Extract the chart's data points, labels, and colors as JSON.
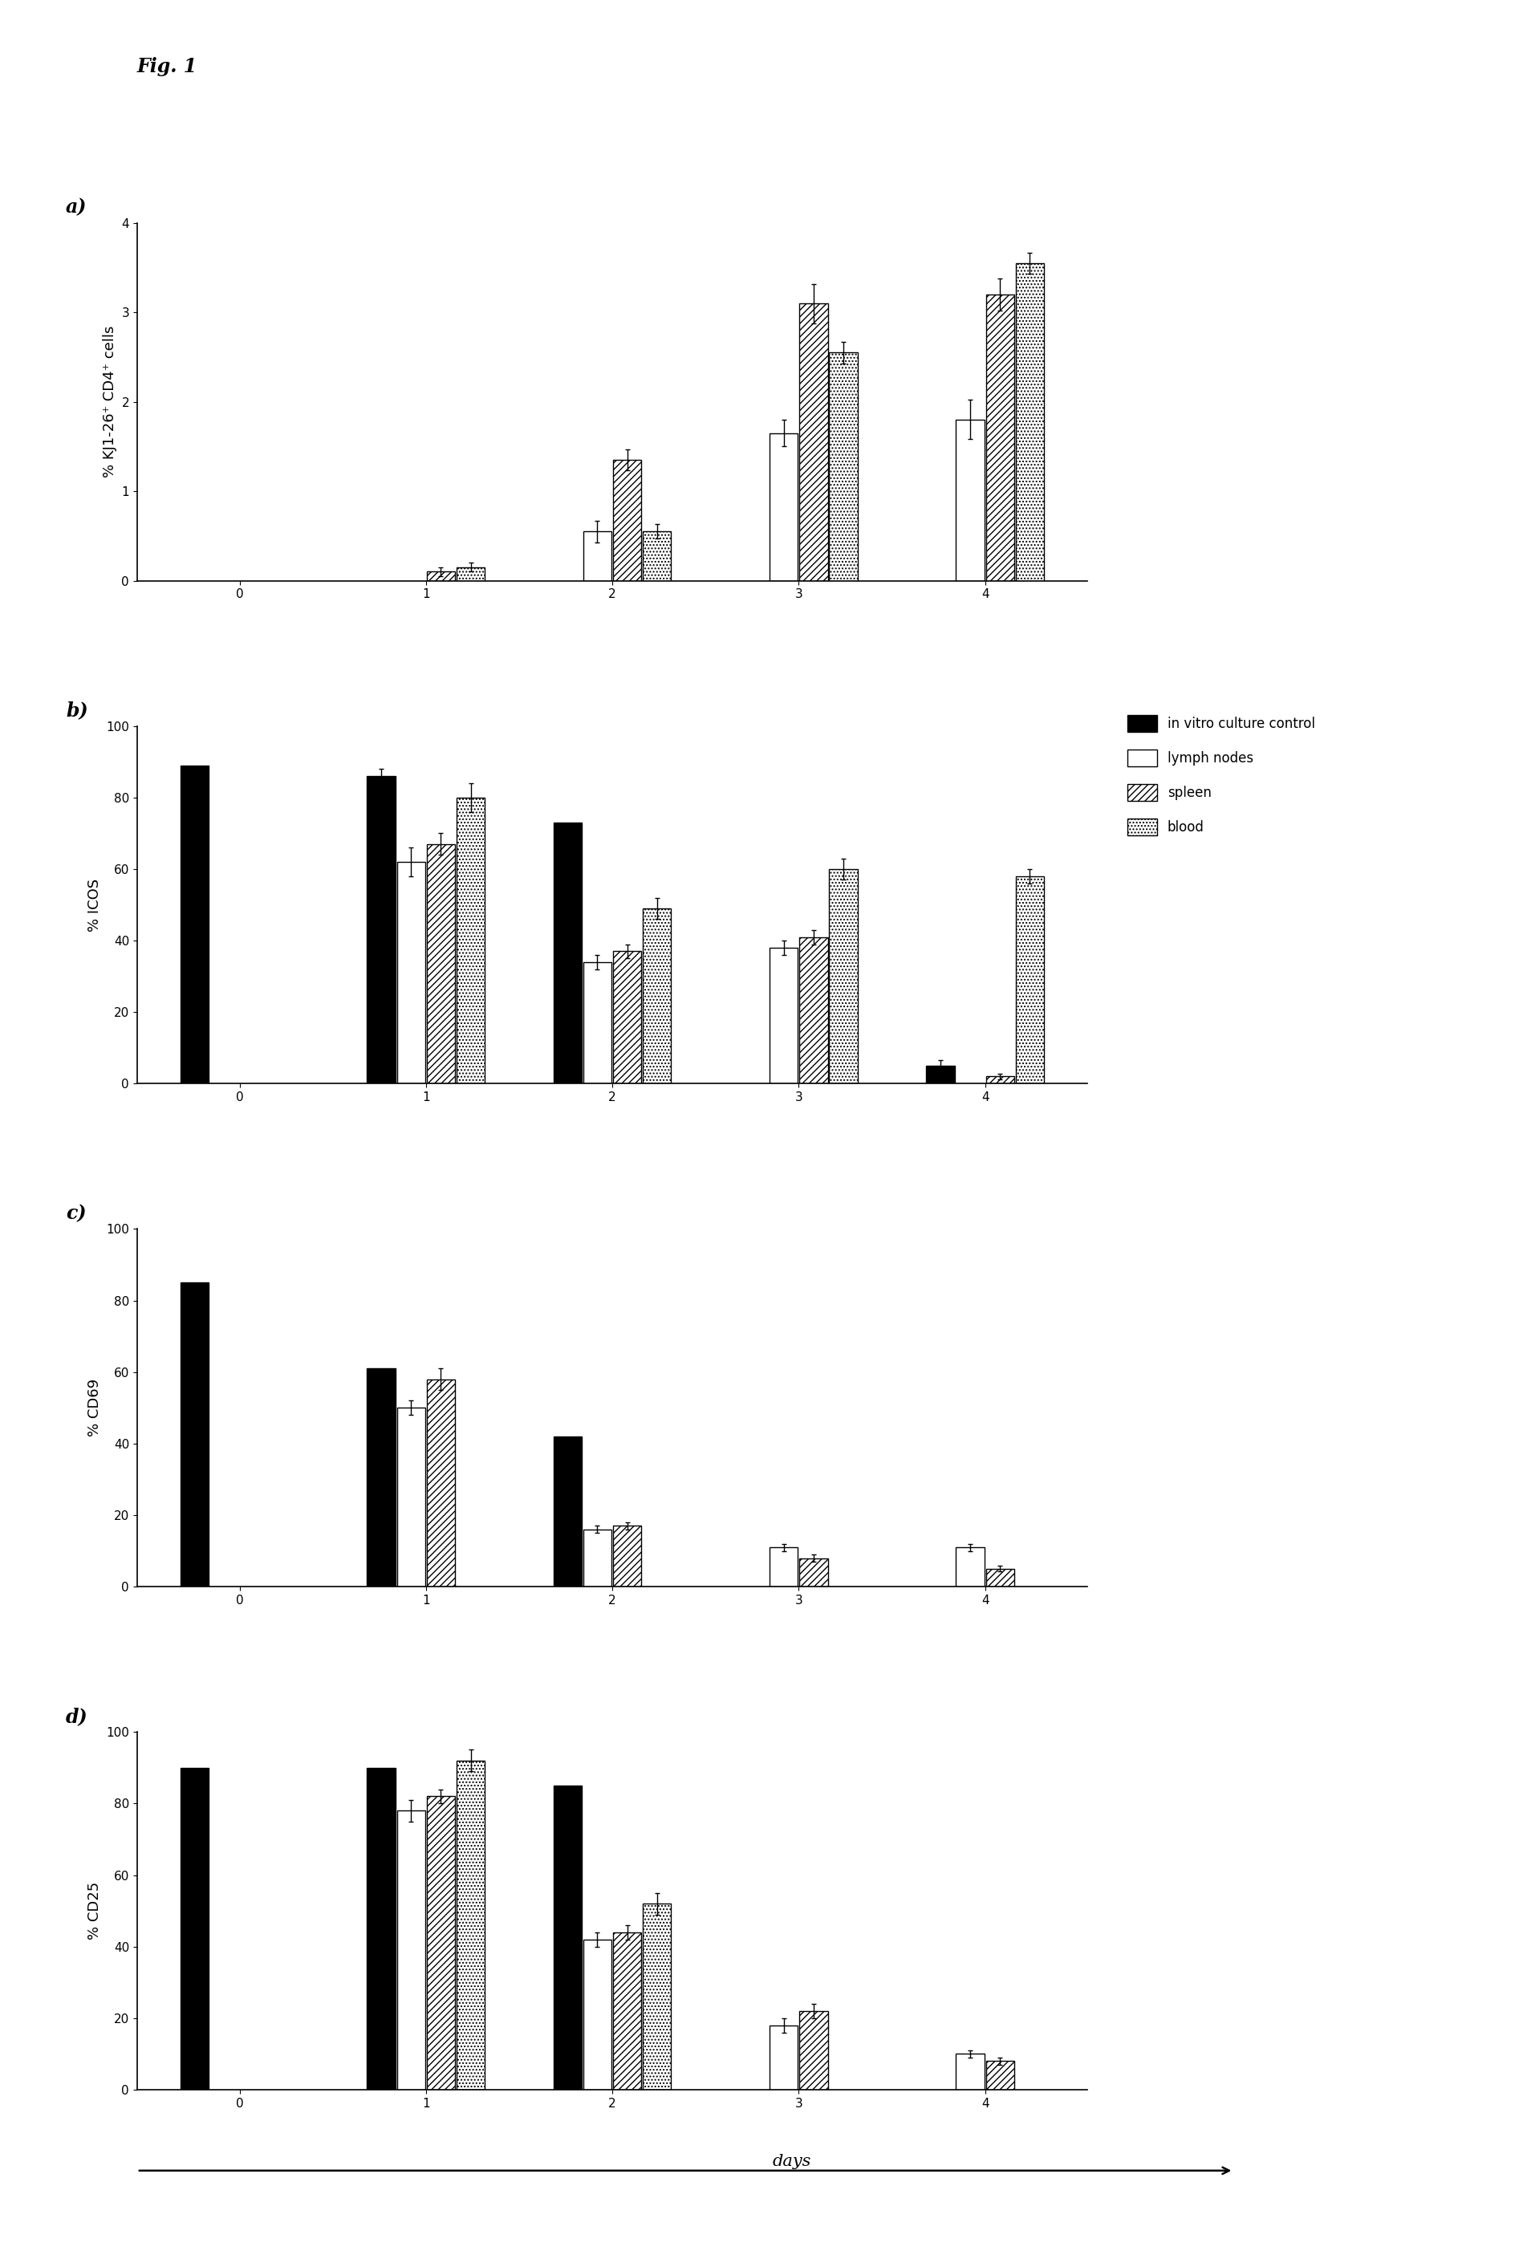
{
  "fig_label": "Fig. 1",
  "background_color": "#ffffff",
  "days": [
    0,
    1,
    2,
    3,
    4
  ],
  "panel_a": {
    "ylabel": "% KJ1-26⁺ CD4⁺ cells",
    "ylim": [
      0,
      4
    ],
    "yticks": [
      0,
      1,
      2,
      3,
      4
    ],
    "data": {
      "control": [
        null,
        null,
        null,
        null,
        null
      ],
      "lymph_nodes": [
        null,
        null,
        0.55,
        1.65,
        1.8
      ],
      "spleen": [
        null,
        0.1,
        1.35,
        3.1,
        3.2
      ],
      "blood": [
        null,
        0.15,
        0.55,
        2.55,
        3.55
      ]
    },
    "err": {
      "control": [
        null,
        null,
        null,
        null,
        null
      ],
      "lymph_nodes": [
        null,
        null,
        0.12,
        0.15,
        0.22
      ],
      "spleen": [
        null,
        0.05,
        0.12,
        0.22,
        0.18
      ],
      "blood": [
        null,
        0.05,
        0.08,
        0.12,
        0.12
      ]
    }
  },
  "panel_b": {
    "ylabel": "% ICOS",
    "ylim": [
      0,
      100
    ],
    "yticks": [
      0,
      20,
      40,
      60,
      80,
      100
    ],
    "data": {
      "control": [
        89,
        86,
        73,
        null,
        5
      ],
      "lymph_nodes": [
        null,
        62,
        34,
        38,
        null
      ],
      "spleen": [
        null,
        67,
        37,
        41,
        2
      ],
      "blood": [
        null,
        80,
        49,
        60,
        58
      ]
    },
    "err": {
      "control": [
        null,
        2,
        null,
        null,
        1.5
      ],
      "lymph_nodes": [
        null,
        4,
        2,
        2,
        null
      ],
      "spleen": [
        null,
        3,
        2,
        2,
        0.8
      ],
      "blood": [
        null,
        4,
        3,
        3,
        2
      ]
    }
  },
  "panel_c": {
    "ylabel": "% CD69",
    "ylim": [
      0,
      100
    ],
    "yticks": [
      0,
      20,
      40,
      60,
      80,
      100
    ],
    "data": {
      "control": [
        85,
        61,
        42,
        null,
        null
      ],
      "lymph_nodes": [
        null,
        50,
        16,
        11,
        11
      ],
      "spleen": [
        null,
        58,
        17,
        8,
        5
      ],
      "blood": [
        null,
        null,
        null,
        null,
        null
      ]
    },
    "err": {
      "control": [
        null,
        null,
        null,
        null,
        null
      ],
      "lymph_nodes": [
        null,
        2,
        1,
        1,
        1
      ],
      "spleen": [
        null,
        3,
        1,
        1,
        0.8
      ],
      "blood": [
        null,
        null,
        null,
        null,
        null
      ]
    }
  },
  "panel_d": {
    "ylabel": "% CD25",
    "ylim": [
      0,
      100
    ],
    "yticks": [
      0,
      20,
      40,
      60,
      80,
      100
    ],
    "data": {
      "control": [
        90,
        90,
        85,
        null,
        null
      ],
      "lymph_nodes": [
        null,
        78,
        42,
        18,
        10
      ],
      "spleen": [
        null,
        82,
        44,
        22,
        8
      ],
      "blood": [
        null,
        92,
        52,
        null,
        null
      ]
    },
    "err": {
      "control": [
        null,
        null,
        null,
        null,
        null
      ],
      "lymph_nodes": [
        null,
        3,
        2,
        2,
        1
      ],
      "spleen": [
        null,
        2,
        2,
        2,
        1
      ],
      "blood": [
        null,
        3,
        3,
        null,
        null
      ]
    }
  },
  "legend_labels": [
    "in vitro culture control",
    "lymph nodes",
    "spleen",
    "blood"
  ],
  "series_keys": [
    "control",
    "lymph_nodes",
    "spleen",
    "blood"
  ],
  "face_colors": [
    "black",
    "white",
    "white",
    "white"
  ],
  "edge_colors": [
    "black",
    "black",
    "black",
    "black"
  ],
  "hatches": [
    null,
    null,
    "////",
    "...."
  ],
  "bar_width": 0.16,
  "fontsize_label": 13,
  "fontsize_tick": 11,
  "fontsize_panel": 17,
  "fontsize_fig": 17,
  "fontsize_legend": 12
}
